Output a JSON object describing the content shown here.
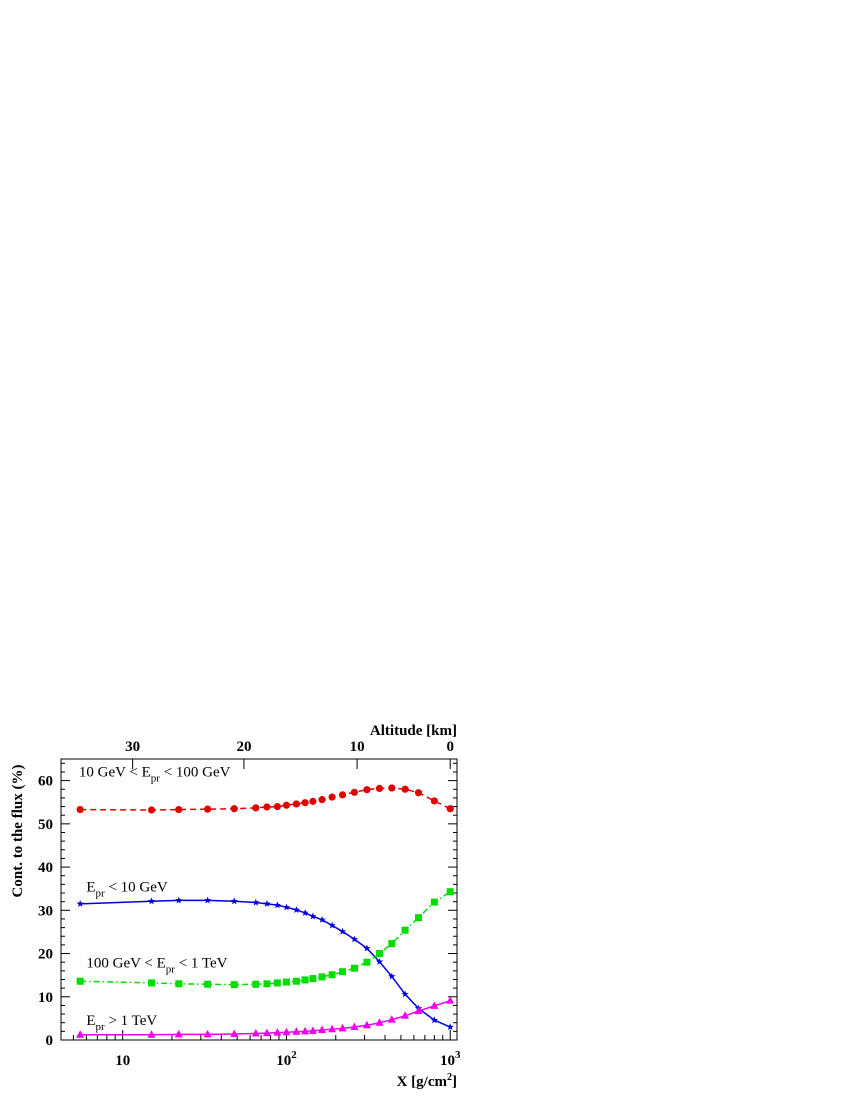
{
  "chart_data": {
    "type": "line",
    "title": "",
    "xlabel": "X [g/cm",
    "xlabel_sup": "2",
    "xlabel_close": "]",
    "ylabel": "Cont. to the flux (%)",
    "x2label": "Altitude [km]",
    "xscale": "log",
    "xlim": [
      4.2,
      1100
    ],
    "ylim": [
      0,
      65
    ],
    "grid": false,
    "x_ticks": [
      {
        "value": 10,
        "label": "10"
      },
      {
        "value": 100,
        "label": "10",
        "sup": "2"
      },
      {
        "value": 1000,
        "label": "10",
        "sup": "3"
      }
    ],
    "y_ticks": [
      0,
      10,
      20,
      30,
      40,
      50,
      60
    ],
    "x2_ticks": [
      {
        "label": "30",
        "at_x": 11.5
      },
      {
        "label": "20",
        "at_x": 55
      },
      {
        "label": "10",
        "at_x": 270
      },
      {
        "label": "0",
        "at_x": 1000
      }
    ],
    "series": [
      {
        "color": "#e00000",
        "marker": "circle",
        "dash": "6,4",
        "label_parts": [
          {
            "t": "10 GeV < E"
          },
          {
            "t": "pr",
            "sub": true
          },
          {
            "t": " < 100 GeV"
          }
        ],
        "label_at": {
          "x": 5.4,
          "y": 61
        },
        "x": [
          5.5,
          15,
          22,
          33,
          48,
          65,
          76,
          88,
          100,
          115,
          130,
          145,
          165,
          190,
          220,
          260,
          310,
          370,
          440,
          530,
          640,
          800,
          1000
        ],
        "y": [
          53.3,
          53.2,
          53.3,
          53.4,
          53.5,
          53.7,
          53.9,
          54.0,
          54.3,
          54.6,
          54.9,
          55.2,
          55.6,
          56.2,
          56.7,
          57.3,
          57.9,
          58.2,
          58.3,
          58.0,
          57.2,
          55.3,
          53.5
        ]
      },
      {
        "color": "#0000dd",
        "marker": "star",
        "dash": "",
        "label_parts": [
          {
            "t": "E"
          },
          {
            "t": "pr",
            "sub": true
          },
          {
            "t": " < 10 GeV"
          }
        ],
        "label_at": {
          "x": 6.0,
          "y": 34.4
        },
        "x": [
          5.5,
          15,
          22,
          33,
          48,
          65,
          76,
          88,
          100,
          115,
          130,
          145,
          165,
          190,
          220,
          260,
          310,
          370,
          440,
          530,
          640,
          800,
          1000
        ],
        "y": [
          31.5,
          32.1,
          32.3,
          32.3,
          32.1,
          31.8,
          31.5,
          31.2,
          30.7,
          30.1,
          29.4,
          28.6,
          27.8,
          26.5,
          25.1,
          23.3,
          21.2,
          18.1,
          14.7,
          10.6,
          7.3,
          4.6,
          3.0
        ]
      },
      {
        "color": "#00dd00",
        "marker": "square",
        "dash": "6,3,1.5,3",
        "label_parts": [
          {
            "t": "100 GeV < E"
          },
          {
            "t": "pr",
            "sub": true
          },
          {
            "t": " < 1 TeV"
          }
        ],
        "label_at": {
          "x": 6.0,
          "y": 16.8
        },
        "x": [
          5.5,
          15,
          22,
          33,
          48,
          65,
          76,
          88,
          100,
          115,
          130,
          145,
          165,
          190,
          220,
          260,
          310,
          370,
          440,
          530,
          640,
          800,
          1000
        ],
        "y": [
          13.6,
          13.2,
          13.0,
          12.9,
          12.8,
          12.9,
          13.0,
          13.2,
          13.4,
          13.6,
          13.9,
          14.2,
          14.6,
          15.1,
          15.8,
          16.6,
          18.0,
          20.0,
          22.3,
          25.4,
          28.3,
          31.9,
          34.3
        ]
      },
      {
        "color": "#ee00ee",
        "marker": "triangle",
        "dash": "",
        "label_parts": [
          {
            "t": "E"
          },
          {
            "t": "pr",
            "sub": true
          },
          {
            "t": " > 1 TeV"
          }
        ],
        "label_at": {
          "x": 6.0,
          "y": 3.5
        },
        "x": [
          5.5,
          15,
          22,
          33,
          48,
          65,
          76,
          88,
          100,
          115,
          130,
          145,
          165,
          190,
          220,
          260,
          310,
          370,
          440,
          530,
          640,
          800,
          1000
        ],
        "y": [
          1.2,
          1.2,
          1.3,
          1.3,
          1.4,
          1.5,
          1.6,
          1.7,
          1.8,
          1.9,
          2.0,
          2.1,
          2.3,
          2.5,
          2.7,
          3.0,
          3.4,
          4.0,
          4.7,
          5.6,
          6.7,
          7.9,
          9.1
        ]
      }
    ]
  }
}
